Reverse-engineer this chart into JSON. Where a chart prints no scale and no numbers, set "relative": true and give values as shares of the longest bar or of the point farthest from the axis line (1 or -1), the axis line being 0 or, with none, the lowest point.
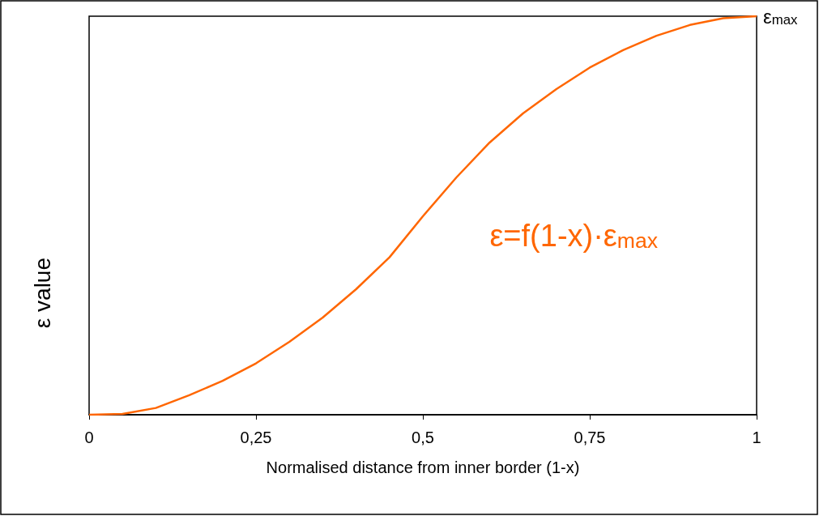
{
  "chart_data": {
    "type": "line",
    "relative": true,
    "xlabel": "Normalised distance from inner border (1-x)",
    "ylabel": "ε value",
    "x": [
      0,
      0.05,
      0.1,
      0.15,
      0.2,
      0.25,
      0.3,
      0.35,
      0.4,
      0.45,
      0.5,
      0.55,
      0.6,
      0.65,
      0.7,
      0.75,
      0.8,
      0.85,
      0.9,
      0.95,
      1
    ],
    "series": [
      {
        "color": "#ff6600",
        "values": [
          0,
          0.002,
          0.017,
          0.049,
          0.085,
          0.129,
          0.183,
          0.244,
          0.315,
          0.395,
          0.498,
          0.595,
          0.683,
          0.756,
          0.817,
          0.871,
          0.915,
          0.951,
          0.978,
          0.995,
          1
        ]
      }
    ],
    "xlim": [
      0,
      1
    ],
    "xticks": [
      0,
      {
        "value": 0.25,
        "label": "0,25"
      },
      {
        "value": 0.5,
        "label": "0,5"
      },
      {
        "value": 0.75,
        "label": "0,75"
      },
      1
    ],
    "annotations": [
      {
        "text": "ε$_{max}$",
        "x": 1,
        "y": 1
      },
      "ε=f(1-x)·ε$_{max}$"
    ],
    "grid": false,
    "marker": "none",
    "line_style": "solid"
  }
}
